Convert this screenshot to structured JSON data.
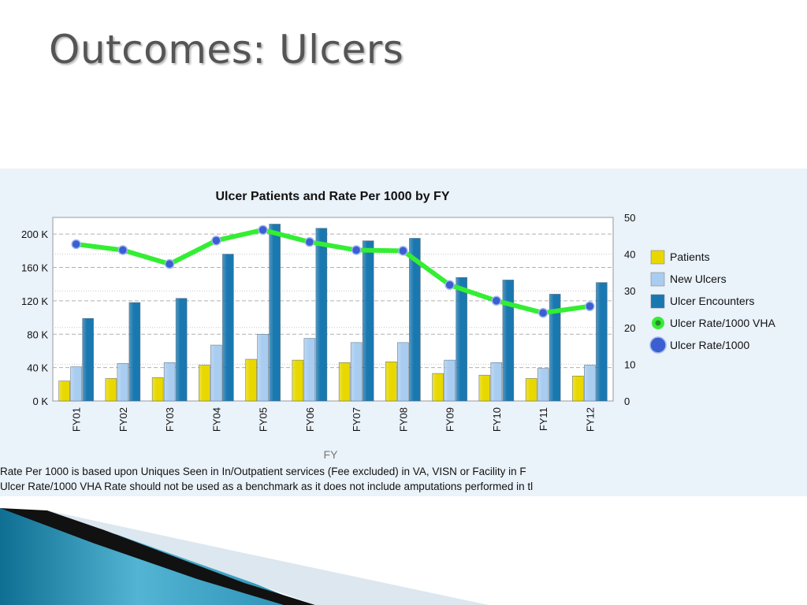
{
  "slide": {
    "title": "Outcomes: Ulcers"
  },
  "notes": [
    "Rate Per 1000 is based upon Uniques Seen in In/Outpatient services (Fee excluded) in VA, VISN or Facility in F",
    "Ulcer Rate/1000 VHA Rate should not be used as a benchmark as it does not include amputations performed in tl"
  ],
  "chart_data": {
    "type": "bar",
    "title": "Ulcer Patients and Rate Per 1000 by FY",
    "xlabel": "FY",
    "ylabel": "",
    "ylabel_right": "",
    "categories": [
      "FY01",
      "FY02",
      "FY03",
      "FY04",
      "FY05",
      "FY06",
      "FY07",
      "FY08",
      "FY09",
      "FY10",
      "FY11",
      "FY12"
    ],
    "y_left": {
      "range": [
        0,
        220000
      ],
      "ticks": [
        0,
        40000,
        80000,
        120000,
        160000,
        200000
      ],
      "tick_labels": [
        "0 K",
        "40 K",
        "80 K",
        "120 K",
        "160 K",
        "200 K"
      ]
    },
    "y_right": {
      "range": [
        0,
        50
      ],
      "ticks": [
        0,
        10,
        20,
        30,
        40,
        50
      ],
      "tick_labels": [
        "0",
        "10",
        "20",
        "30",
        "40",
        "50"
      ]
    },
    "series": [
      {
        "name": "Patients",
        "axis": "left",
        "kind": "bar",
        "color": "#e8d800",
        "values": [
          24000,
          27000,
          28000,
          43000,
          50000,
          49000,
          46000,
          47000,
          33000,
          31000,
          27000,
          30000
        ]
      },
      {
        "name": "New Ulcers",
        "axis": "left",
        "kind": "bar",
        "color": "#a9cdf0",
        "values": [
          41000,
          45000,
          46000,
          67000,
          80000,
          75000,
          70000,
          70000,
          49000,
          46000,
          39000,
          43000
        ]
      },
      {
        "name": "Ulcer Encounters",
        "axis": "left",
        "kind": "bar",
        "color": "#1a78b0",
        "values": [
          99000,
          118000,
          123000,
          176000,
          212000,
          207000,
          192000,
          195000,
          148000,
          145000,
          128000,
          142000
        ]
      },
      {
        "name": "Ulcer Rate/1000 VHA",
        "axis": "right",
        "kind": "line",
        "color": "#33ee33",
        "values": [
          42.7,
          41.1,
          37.3,
          43.7,
          46.6,
          43.3,
          41.1,
          40.9,
          31.6,
          27.3,
          24.0,
          25.8
        ]
      },
      {
        "name": "Ulcer Rate/1000",
        "axis": "right",
        "kind": "marker",
        "color": "#3b5fd0",
        "values": [
          42.7,
          41.1,
          37.3,
          43.7,
          46.6,
          43.3,
          41.1,
          40.9,
          31.6,
          27.3,
          24.0,
          25.8
        ]
      }
    ],
    "grid": true,
    "legend": "right"
  }
}
